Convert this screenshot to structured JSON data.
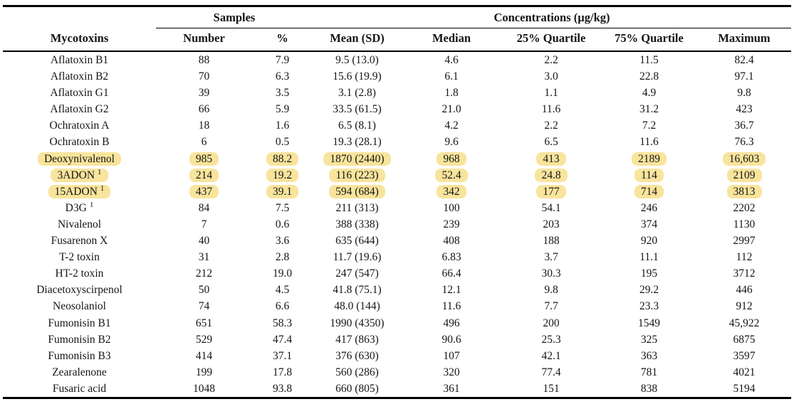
{
  "table": {
    "group_headers": {
      "samples": "Samples",
      "concentrations": "Concentrations (µg/kg)"
    },
    "columns": {
      "mycotoxins": "Mycotoxins",
      "number": "Number",
      "percent": "%",
      "mean_sd": "Mean (SD)",
      "median": "Median",
      "q25": "25% Quartile",
      "q75": "75% Quartile",
      "maximum": "Maximum"
    },
    "rows": [
      {
        "name": "Aflatoxin B1",
        "footnote_marker": "",
        "highlighted": false,
        "values": [
          "88",
          "7.9",
          "9.5 (13.0)",
          "4.6",
          "2.2",
          "11.5",
          "82.4"
        ]
      },
      {
        "name": "Aflatoxin B2",
        "footnote_marker": "",
        "highlighted": false,
        "values": [
          "70",
          "6.3",
          "15.6 (19.9)",
          "6.1",
          "3.0",
          "22.8",
          "97.1"
        ]
      },
      {
        "name": "Aflatoxin G1",
        "footnote_marker": "",
        "highlighted": false,
        "values": [
          "39",
          "3.5",
          "3.1 (2.8)",
          "1.8",
          "1.1",
          "4.9",
          "9.8"
        ]
      },
      {
        "name": "Aflatoxin G2",
        "footnote_marker": "",
        "highlighted": false,
        "values": [
          "66",
          "5.9",
          "33.5 (61.5)",
          "21.0",
          "11.6",
          "31.2",
          "423"
        ]
      },
      {
        "name": "Ochratoxin A",
        "footnote_marker": "",
        "highlighted": false,
        "values": [
          "18",
          "1.6",
          "6.5 (8.1)",
          "4.2",
          "2.2",
          "7.2",
          "36.7"
        ]
      },
      {
        "name": "Ochratoxin B",
        "footnote_marker": "",
        "highlighted": false,
        "values": [
          "6",
          "0.5",
          "19.3 (28.1)",
          "9.6",
          "6.5",
          "11.6",
          "76.3"
        ]
      },
      {
        "name": "Deoxynivalenol",
        "footnote_marker": "",
        "highlighted": true,
        "values": [
          "985",
          "88.2",
          "1870 (2440)",
          "968",
          "413",
          "2189",
          "16,603"
        ]
      },
      {
        "name": "3ADON",
        "footnote_marker": "1",
        "highlighted": true,
        "values": [
          "214",
          "19.2",
          "116 (223)",
          "52.4",
          "24.8",
          "114",
          "2109"
        ]
      },
      {
        "name": "15ADON",
        "footnote_marker": "1",
        "highlighted": true,
        "values": [
          "437",
          "39.1",
          "594 (684)",
          "342",
          "177",
          "714",
          "3813"
        ]
      },
      {
        "name": "D3G",
        "footnote_marker": "1",
        "highlighted": false,
        "values": [
          "84",
          "7.5",
          "211 (313)",
          "100",
          "54.1",
          "246",
          "2202"
        ]
      },
      {
        "name": "Nivalenol",
        "footnote_marker": "",
        "highlighted": false,
        "values": [
          "7",
          "0.6",
          "388 (338)",
          "239",
          "203",
          "374",
          "1130"
        ]
      },
      {
        "name": "Fusarenon X",
        "footnote_marker": "",
        "highlighted": false,
        "values": [
          "40",
          "3.6",
          "635 (644)",
          "408",
          "188",
          "920",
          "2997"
        ]
      },
      {
        "name": "T-2 toxin",
        "footnote_marker": "",
        "highlighted": false,
        "values": [
          "31",
          "2.8",
          "11.7 (19.6)",
          "6.83",
          "3.7",
          "11.1",
          "112"
        ]
      },
      {
        "name": "HT-2 toxin",
        "footnote_marker": "",
        "highlighted": false,
        "values": [
          "212",
          "19.0",
          "247 (547)",
          "66.4",
          "30.3",
          "195",
          "3712"
        ]
      },
      {
        "name": "Diacetoxyscirpenol",
        "footnote_marker": "",
        "highlighted": false,
        "values": [
          "50",
          "4.5",
          "41.8 (75.1)",
          "12.1",
          "9.8",
          "29.2",
          "446"
        ]
      },
      {
        "name": "Neosolaniol",
        "footnote_marker": "",
        "highlighted": false,
        "values": [
          "74",
          "6.6",
          "48.0 (144)",
          "11.6",
          "7.7",
          "23.3",
          "912"
        ]
      },
      {
        "name": "Fumonisin B1",
        "footnote_marker": "",
        "highlighted": false,
        "values": [
          "651",
          "58.3",
          "1990 (4350)",
          "496",
          "200",
          "1549",
          "45,922"
        ]
      },
      {
        "name": "Fumonisin B2",
        "footnote_marker": "",
        "highlighted": false,
        "values": [
          "529",
          "47.4",
          "417 (863)",
          "90.6",
          "25.3",
          "325",
          "6875"
        ]
      },
      {
        "name": "Fumonisin B3",
        "footnote_marker": "",
        "highlighted": false,
        "values": [
          "414",
          "37.1",
          "376 (630)",
          "107",
          "42.1",
          "363",
          "3597"
        ]
      },
      {
        "name": "Zearalenone",
        "footnote_marker": "",
        "highlighted": false,
        "values": [
          "199",
          "17.8",
          "560 (286)",
          "320",
          "77.4",
          "781",
          "4021"
        ]
      },
      {
        "name": "Fusaric acid",
        "footnote_marker": "",
        "highlighted": false,
        "values": [
          "1048",
          "93.8",
          "660 (805)",
          "361",
          "151",
          "838",
          "5194"
        ]
      }
    ]
  },
  "colors": {
    "highlight": "#f8e49c",
    "rule": "#000000",
    "text": "#151515"
  }
}
